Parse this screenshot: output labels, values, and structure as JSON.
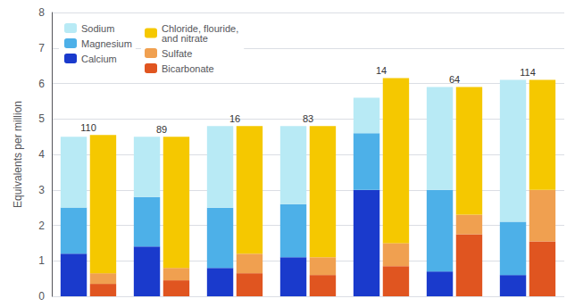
{
  "chart_data": {
    "type": "bar",
    "stacked": true,
    "categories": [
      "110",
      "89",
      "16",
      "83",
      "14",
      "64",
      "114"
    ],
    "ylabel": "Equivalents per million",
    "ylim": [
      0,
      8
    ],
    "yticks": [
      0,
      1,
      2,
      3,
      4,
      5,
      6,
      7,
      8
    ],
    "grid": true,
    "legend": "upper left",
    "tick_labels": "y",
    "series": [
      [
        {
          "name": "Calcium",
          "color": "#1a3acc",
          "values": [
            1.2,
            1.4,
            0.8,
            1.1,
            3.0,
            0.7,
            0.6
          ]
        },
        {
          "name": "Magnesium",
          "color": "#4db0e8",
          "values": [
            1.3,
            1.4,
            1.7,
            1.5,
            1.6,
            2.3,
            1.5
          ]
        },
        {
          "name": "Sodium",
          "color": "#b8eaf5",
          "values": [
            2.0,
            1.7,
            2.3,
            2.2,
            1.0,
            2.9,
            4.0
          ]
        }
      ],
      [
        {
          "name": "Bicarbonate",
          "color": "#e05520",
          "values": [
            0.35,
            0.45,
            0.65,
            0.6,
            0.85,
            1.75,
            1.55
          ]
        },
        {
          "name": "Sulfate",
          "color": "#f0a050",
          "values": [
            0.3,
            0.35,
            0.55,
            0.5,
            0.65,
            0.55,
            1.45
          ]
        },
        {
          "name": "Chloride, flouride,\nand nitrate",
          "color": "#f5c800",
          "values": [
            3.9,
            3.7,
            3.6,
            3.7,
            4.65,
            3.6,
            3.1
          ]
        }
      ]
    ]
  }
}
